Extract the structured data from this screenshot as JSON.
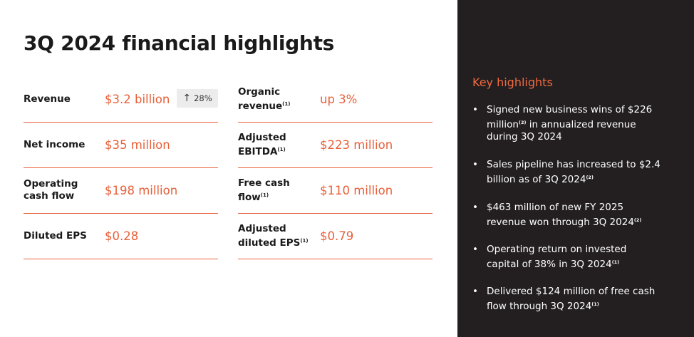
{
  "title": "3Q 2024 financial highlights",
  "metrics_left": [
    {
      "label": "Revenue",
      "value": "$3.2 billion",
      "badge": {
        "arrow": "↑",
        "text": "28%"
      }
    },
    {
      "label": "Net income",
      "value": "$35 million"
    },
    {
      "label_lines": [
        "Operating",
        "cash flow"
      ],
      "value": "$198 million"
    },
    {
      "label": "Diluted EPS",
      "value": "$0.28"
    }
  ],
  "metrics_right": [
    {
      "label_lines": [
        "Organic",
        "revenue"
      ],
      "footnote": "(1)",
      "value": "up 3%"
    },
    {
      "label_lines": [
        "Adjusted",
        "EBITDA"
      ],
      "footnote": "(1)",
      "value": "$223 million"
    },
    {
      "label_lines": [
        "Free cash",
        "flow"
      ],
      "footnote": "(1)",
      "value": "$110 million"
    },
    {
      "label_lines": [
        "Adjusted",
        "diluted EPS"
      ],
      "footnote": "(1)",
      "value": "$0.79"
    }
  ],
  "key_highlights": {
    "title": "Key highlights",
    "bullet_char": "•",
    "items": [
      {
        "lines": [
          "Signed new business wins of $226",
          "million",
          "(2)",
          " in annualized revenue",
          "during 3Q 2024"
        ]
      },
      {
        "lines": [
          "Sales pipeline has increased to $2.4",
          "billion as of 3Q 2024",
          "(2)"
        ]
      },
      {
        "lines": [
          "$463 million of new FY 2025",
          "revenue won through 3Q 2024",
          "(2)"
        ]
      },
      {
        "lines": [
          "Operating return on invested",
          "capital of 38% in 3Q 2024",
          "(1)"
        ]
      },
      {
        "lines": [
          "Delivered $124 million of free cash",
          "flow through 3Q 2024",
          "(1)"
        ]
      }
    ]
  },
  "colors": {
    "accent": "#e8603a",
    "dark_panel": "#231f20",
    "highlight_title": "#f26a3f"
  }
}
